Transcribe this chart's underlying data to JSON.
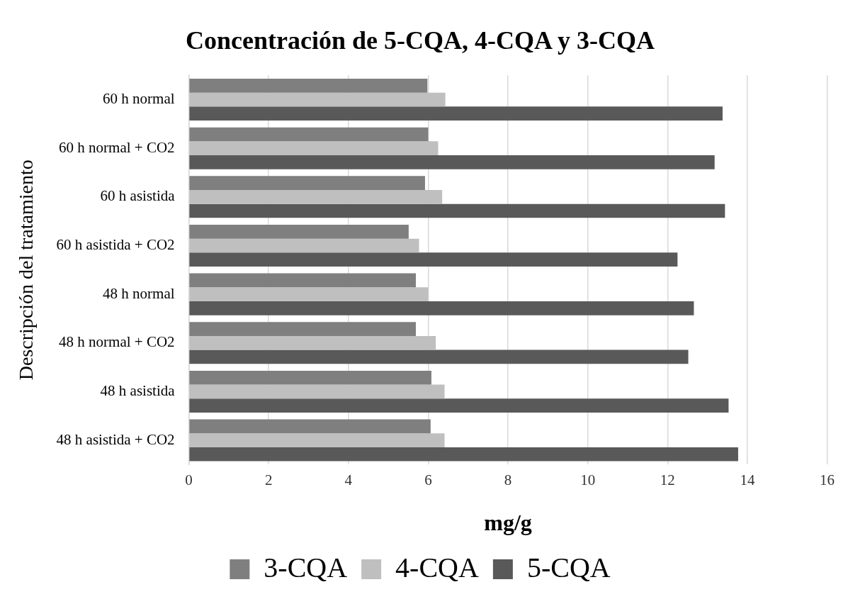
{
  "chart_data": {
    "type": "bar",
    "orientation": "horizontal",
    "title": "Concentración de 5-CQA, 4-CQA y 3-CQA",
    "xlabel": "mg/g",
    "ylabel": "Descripción del tratamiento",
    "categories": [
      "60 h normal",
      "60 h normal + CO2",
      "60 h asistida",
      "60 h asistida + CO2",
      "48 h normal",
      "48 h normal + CO2",
      "48 h asistida",
      "48 h asistida + CO2"
    ],
    "series": [
      {
        "name": "3-CQA",
        "color": "#7f7f7f",
        "values": [
          5.98,
          6.0,
          5.92,
          5.51,
          5.69,
          5.69,
          6.08,
          6.06
        ]
      },
      {
        "name": "4-CQA",
        "color": "#bfbfbf",
        "values": [
          6.43,
          6.25,
          6.35,
          5.77,
          6.0,
          6.19,
          6.41,
          6.41
        ]
      },
      {
        "name": "5-CQA",
        "color": "#595959",
        "values": [
          13.38,
          13.18,
          13.44,
          12.25,
          12.66,
          12.52,
          13.53,
          13.77
        ]
      }
    ],
    "xlim": [
      0,
      16
    ],
    "xticks": [
      0,
      2,
      4,
      6,
      8,
      10,
      12,
      14,
      16
    ],
    "grid": "x",
    "legend": "bottom"
  }
}
